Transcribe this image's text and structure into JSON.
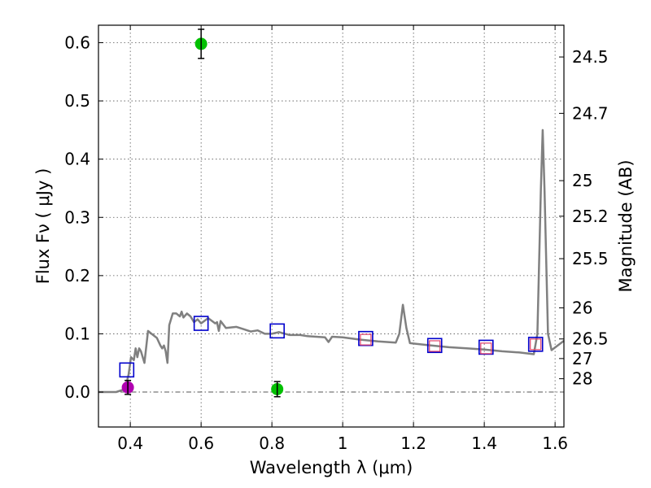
{
  "chart_data": {
    "type": "scatter",
    "xlabel": "Wavelength  λ (μm)",
    "ylabel": "Flux  Fν  ( μJy )",
    "ylabel_right": "Magnitude (AB)",
    "xlim": [
      0.31,
      1.625
    ],
    "ylim": [
      -0.06,
      0.63
    ],
    "xticks": [
      {
        "value": 0.4,
        "label": "0.4"
      },
      {
        "value": 0.6,
        "label": "0.6"
      },
      {
        "value": 0.8,
        "label": "0.8"
      },
      {
        "value": 1.0,
        "label": "1"
      },
      {
        "value": 1.2,
        "label": "1.2"
      },
      {
        "value": 1.4,
        "label": "1.4"
      },
      {
        "value": 1.6,
        "label": "1.6"
      }
    ],
    "yticks": [
      {
        "value": 0.0,
        "label": "0.0"
      },
      {
        "value": 0.1,
        "label": "0.1"
      },
      {
        "value": 0.2,
        "label": "0.2"
      },
      {
        "value": 0.3,
        "label": "0.3"
      },
      {
        "value": 0.4,
        "label": "0.4"
      },
      {
        "value": 0.5,
        "label": "0.5"
      },
      {
        "value": 0.6,
        "label": "0.6"
      }
    ],
    "right_ticks": [
      {
        "mag": 24.5,
        "label": "24.5"
      },
      {
        "mag": 24.7,
        "label": "24.7"
      },
      {
        "mag": 25.0,
        "label": "25"
      },
      {
        "mag": 25.2,
        "label": "25.2"
      },
      {
        "mag": 25.5,
        "label": "25.5"
      },
      {
        "mag": 26.0,
        "label": "26"
      },
      {
        "mag": 26.5,
        "label": "26.5"
      },
      {
        "mag": 27.0,
        "label": "27"
      },
      {
        "mag": 28.0,
        "label": "28"
      }
    ],
    "colors": {
      "model": "#808080",
      "observed_green": "#00c000",
      "observed_magenta": "#b000b0",
      "model_box_blue": "#0000cc",
      "model_box_red": "#e0406a",
      "zero_line": "#555555"
    },
    "series": [
      {
        "name": "model spectrum",
        "kind": "line",
        "points": [
          [
            0.31,
            0.0
          ],
          [
            0.36,
            0.0
          ],
          [
            0.385,
            0.005
          ],
          [
            0.395,
            0.03
          ],
          [
            0.402,
            0.06
          ],
          [
            0.41,
            0.055
          ],
          [
            0.415,
            0.075
          ],
          [
            0.42,
            0.06
          ],
          [
            0.425,
            0.075
          ],
          [
            0.43,
            0.07
          ],
          [
            0.44,
            0.05
          ],
          [
            0.45,
            0.105
          ],
          [
            0.46,
            0.1
          ],
          [
            0.475,
            0.093
          ],
          [
            0.485,
            0.08
          ],
          [
            0.49,
            0.075
          ],
          [
            0.495,
            0.08
          ],
          [
            0.5,
            0.07
          ],
          [
            0.505,
            0.05
          ],
          [
            0.51,
            0.115
          ],
          [
            0.52,
            0.135
          ],
          [
            0.53,
            0.135
          ],
          [
            0.54,
            0.13
          ],
          [
            0.545,
            0.138
          ],
          [
            0.55,
            0.128
          ],
          [
            0.56,
            0.135
          ],
          [
            0.57,
            0.13
          ],
          [
            0.58,
            0.12
          ],
          [
            0.59,
            0.125
          ],
          [
            0.6,
            0.118
          ],
          [
            0.62,
            0.127
          ],
          [
            0.64,
            0.118
          ],
          [
            0.645,
            0.12
          ],
          [
            0.65,
            0.105
          ],
          [
            0.655,
            0.122
          ],
          [
            0.67,
            0.11
          ],
          [
            0.7,
            0.112
          ],
          [
            0.72,
            0.108
          ],
          [
            0.74,
            0.104
          ],
          [
            0.76,
            0.106
          ],
          [
            0.78,
            0.1
          ],
          [
            0.8,
            0.1
          ],
          [
            0.82,
            0.103
          ],
          [
            0.85,
            0.098
          ],
          [
            0.88,
            0.098
          ],
          [
            0.9,
            0.096
          ],
          [
            0.95,
            0.094
          ],
          [
            0.96,
            0.086
          ],
          [
            0.97,
            0.095
          ],
          [
            1.0,
            0.094
          ],
          [
            1.05,
            0.09
          ],
          [
            1.1,
            0.087
          ],
          [
            1.15,
            0.085
          ],
          [
            1.16,
            0.1
          ],
          [
            1.17,
            0.15
          ],
          [
            1.18,
            0.11
          ],
          [
            1.19,
            0.084
          ],
          [
            1.25,
            0.08
          ],
          [
            1.3,
            0.077
          ],
          [
            1.35,
            0.075
          ],
          [
            1.4,
            0.073
          ],
          [
            1.45,
            0.07
          ],
          [
            1.5,
            0.068
          ],
          [
            1.54,
            0.065
          ],
          [
            1.55,
            0.1
          ],
          [
            1.56,
            0.35
          ],
          [
            1.565,
            0.45
          ],
          [
            1.57,
            0.35
          ],
          [
            1.58,
            0.1
          ],
          [
            1.59,
            0.072
          ],
          [
            1.625,
            0.088
          ]
        ]
      },
      {
        "name": "model photometry (blue squares)",
        "kind": "square",
        "points": [
          [
            0.39,
            0.038
          ],
          [
            0.6,
            0.118
          ],
          [
            0.815,
            0.105
          ],
          [
            1.065,
            0.092
          ],
          [
            1.26,
            0.08
          ],
          [
            1.405,
            0.077
          ],
          [
            1.545,
            0.082
          ]
        ]
      },
      {
        "name": "model photometry (red squares)",
        "kind": "square-small",
        "points": [
          [
            1.065,
            0.09
          ],
          [
            1.26,
            0.079
          ],
          [
            1.405,
            0.075
          ],
          [
            1.545,
            0.082
          ]
        ]
      },
      {
        "name": "observed (green)",
        "kind": "point",
        "points": [
          [
            0.6,
            0.598,
            0.025
          ],
          [
            0.815,
            0.005,
            0.013
          ]
        ]
      },
      {
        "name": "observed (magenta)",
        "kind": "point",
        "points": [
          [
            0.393,
            0.008,
            0.012
          ]
        ]
      }
    ]
  }
}
